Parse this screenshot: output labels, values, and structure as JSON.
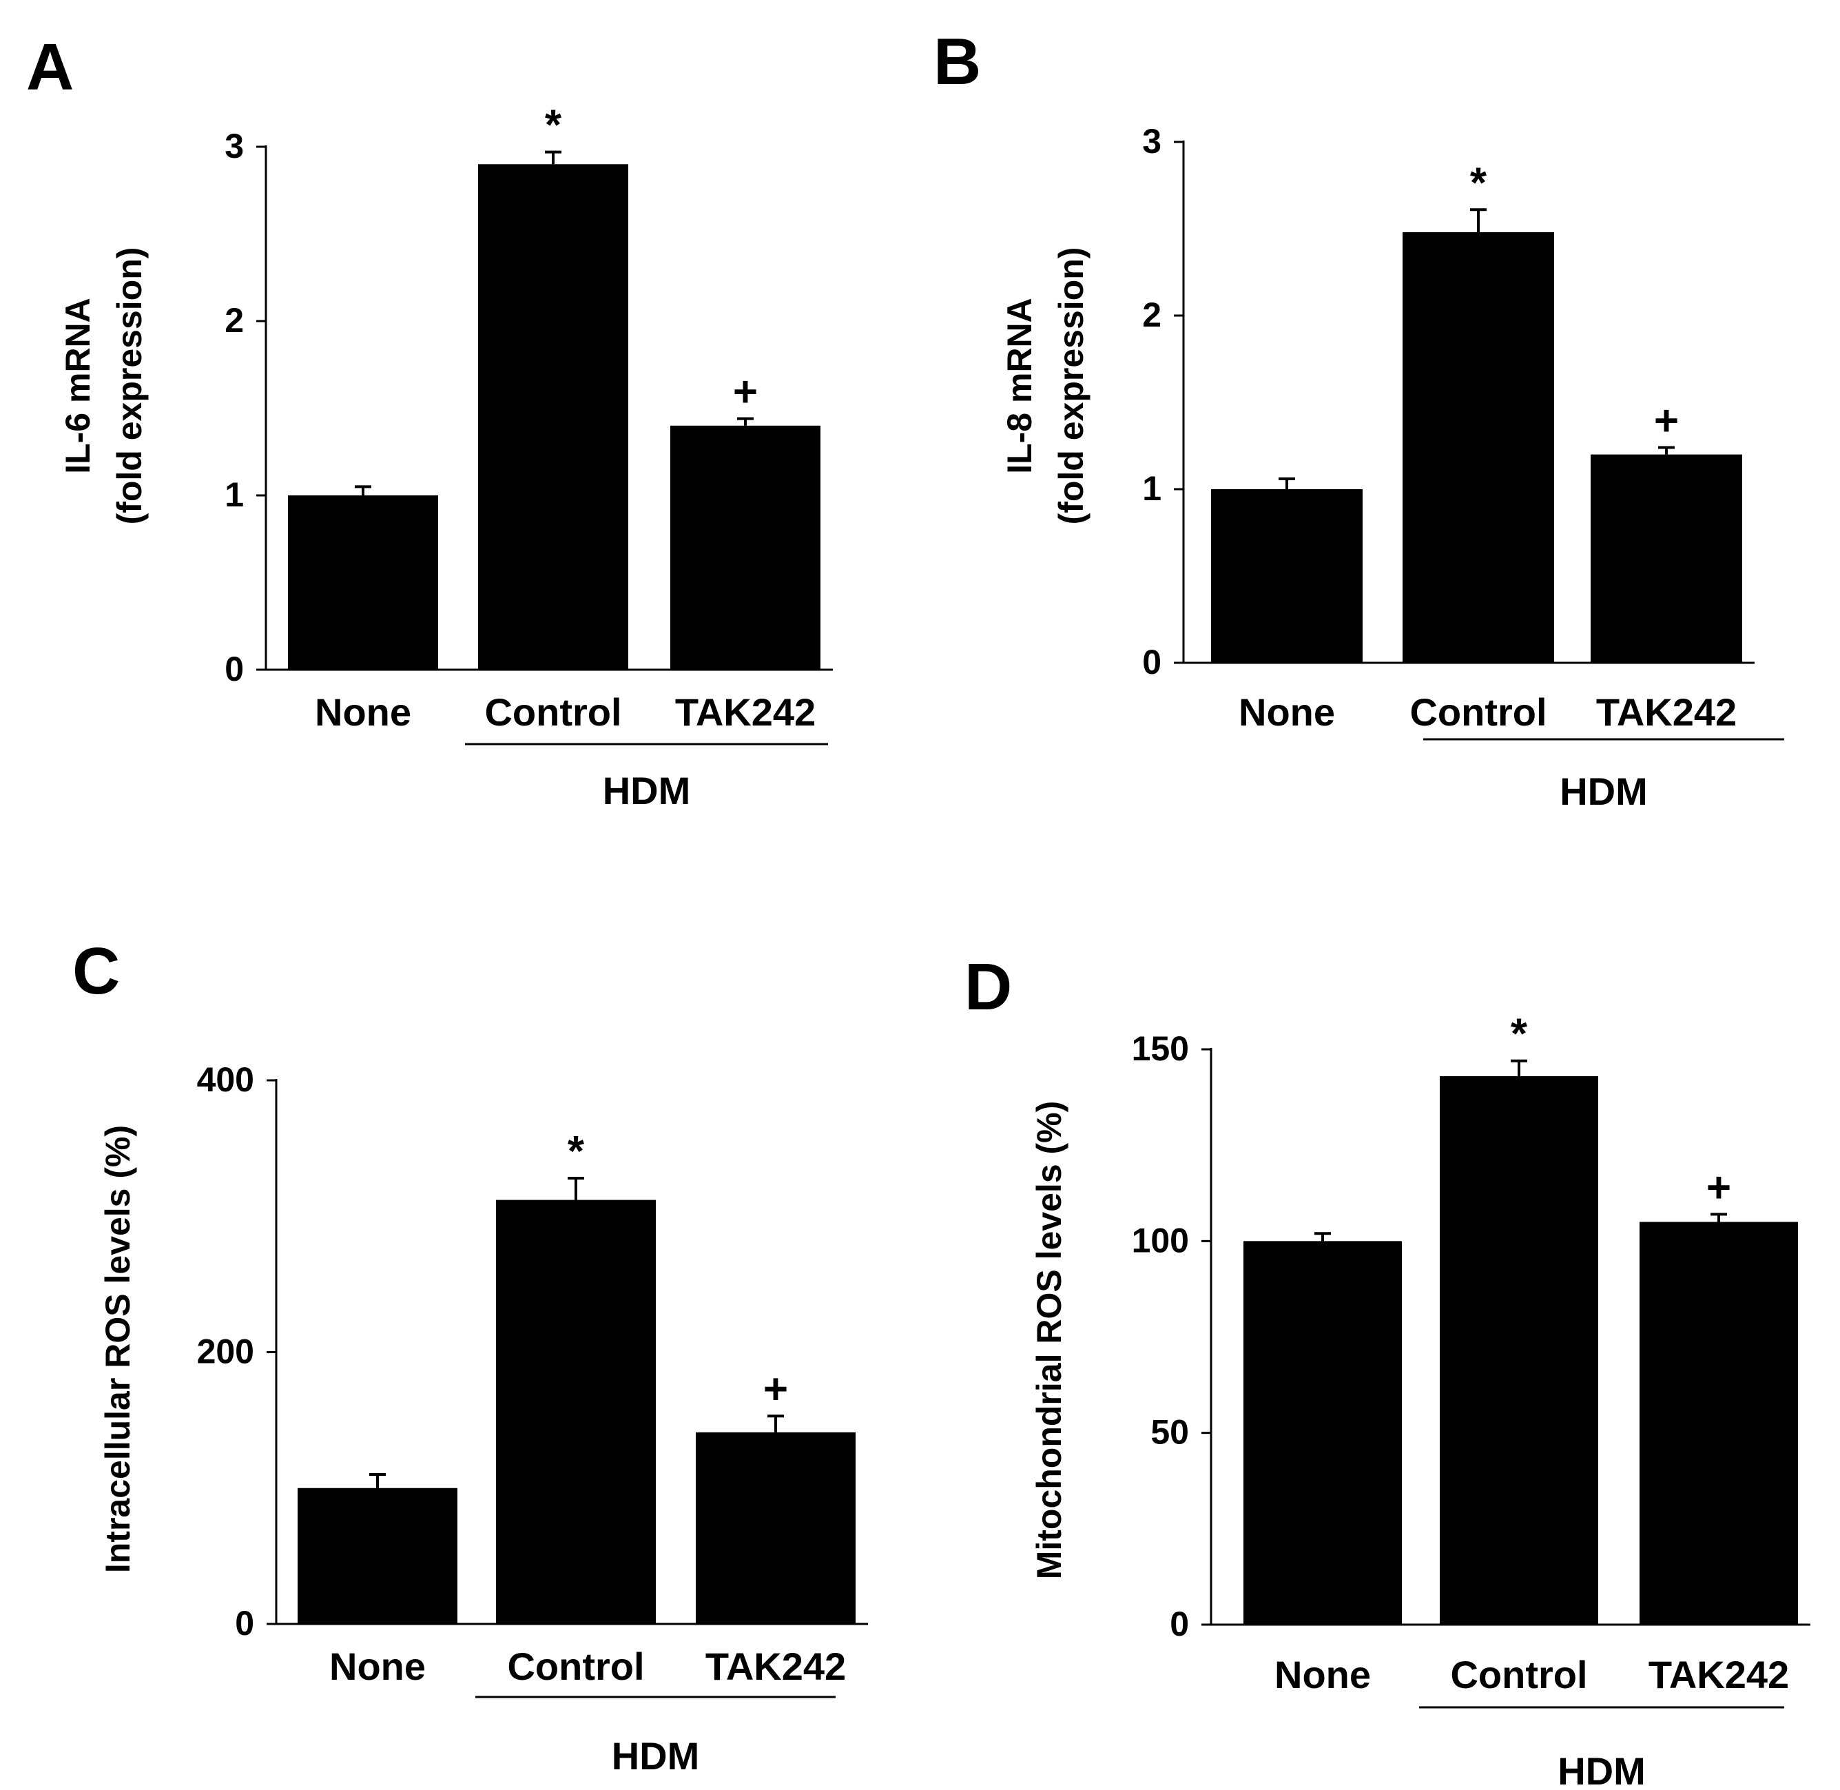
{
  "chart_data": [
    {
      "panel_label": "A",
      "type": "bar",
      "ylabel_lines": [
        "IL-6 mRNA",
        "(fold expression)"
      ],
      "categories": [
        "None",
        "Control",
        "TAK242"
      ],
      "values": [
        1.0,
        2.9,
        1.4
      ],
      "errors": [
        0.05,
        0.07,
        0.04
      ],
      "significance": [
        "",
        "*",
        "+"
      ],
      "group_label": "HDM",
      "group_members": [
        "Control",
        "TAK242"
      ],
      "yticks": [
        0,
        1,
        2,
        3
      ],
      "ylim": [
        0,
        3
      ]
    },
    {
      "panel_label": "B",
      "type": "bar",
      "ylabel_lines": [
        "IL-8 mRNA",
        "(fold expression)"
      ],
      "categories": [
        "None",
        "Control",
        "TAK242"
      ],
      "values": [
        1.0,
        2.48,
        1.2
      ],
      "errors": [
        0.06,
        0.13,
        0.04
      ],
      "significance": [
        "",
        "*",
        "+"
      ],
      "group_label": "HDM",
      "group_members": [
        "Control",
        "TAK242"
      ],
      "yticks": [
        0,
        1,
        2,
        3
      ],
      "ylim": [
        0,
        3
      ]
    },
    {
      "panel_label": "C",
      "type": "bar",
      "ylabel_lines": [
        "Intracellular ROS levels (%)"
      ],
      "categories": [
        "None",
        "Control",
        "TAK242"
      ],
      "values": [
        100,
        312,
        141
      ],
      "errors": [
        10,
        16,
        12
      ],
      "significance": [
        "",
        "*",
        "+"
      ],
      "group_label": "HDM",
      "group_members": [
        "Control",
        "TAK242"
      ],
      "yticks": [
        0,
        200,
        400
      ],
      "ylim": [
        0,
        400
      ]
    },
    {
      "panel_label": "D",
      "type": "bar",
      "ylabel_lines": [
        "Mitochondrial ROS levels (%)"
      ],
      "categories": [
        "None",
        "Control",
        "TAK242"
      ],
      "values": [
        100,
        143,
        105
      ],
      "errors": [
        2,
        4,
        2
      ],
      "significance": [
        "",
        "*",
        "+"
      ],
      "group_label": "HDM",
      "group_members": [
        "Control",
        "TAK242"
      ],
      "yticks": [
        0,
        50,
        100,
        150
      ],
      "ylim": [
        0,
        150
      ]
    }
  ]
}
